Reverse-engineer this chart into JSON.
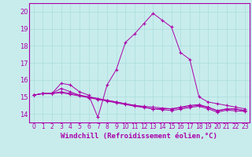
{
  "title": "",
  "xlabel": "Windchill (Refroidissement éolien,°C)",
  "background_color": "#c8ecec",
  "line_color": "#aa00aa",
  "grid_color": "#aadddd",
  "xlim": [
    -0.5,
    23.5
  ],
  "ylim": [
    13.5,
    20.5
  ],
  "xticks": [
    0,
    1,
    2,
    3,
    4,
    5,
    6,
    7,
    8,
    9,
    10,
    11,
    12,
    13,
    14,
    15,
    16,
    17,
    18,
    19,
    20,
    21,
    22,
    23
  ],
  "yticks": [
    14,
    15,
    16,
    17,
    18,
    19,
    20
  ],
  "series": [
    [
      15.1,
      15.2,
      15.2,
      15.8,
      15.7,
      15.3,
      15.1,
      13.8,
      15.7,
      16.6,
      18.2,
      18.7,
      19.3,
      19.9,
      19.5,
      19.1,
      17.6,
      17.2,
      15.0,
      14.7,
      14.6,
      14.5,
      14.4,
      14.3
    ],
    [
      15.1,
      15.2,
      15.2,
      15.5,
      15.3,
      15.1,
      15.0,
      14.9,
      14.8,
      14.7,
      14.6,
      14.5,
      14.4,
      14.3,
      14.3,
      14.3,
      14.4,
      14.5,
      14.55,
      14.4,
      14.2,
      14.3,
      14.3,
      14.2
    ],
    [
      15.1,
      15.2,
      15.2,
      15.3,
      15.2,
      15.1,
      15.0,
      14.9,
      14.8,
      14.7,
      14.6,
      14.5,
      14.45,
      14.4,
      14.35,
      14.3,
      14.35,
      14.45,
      14.5,
      14.38,
      14.18,
      14.28,
      14.28,
      14.18
    ],
    [
      15.1,
      15.2,
      15.2,
      15.25,
      15.15,
      15.05,
      14.95,
      14.85,
      14.75,
      14.65,
      14.55,
      14.45,
      14.38,
      14.3,
      14.25,
      14.2,
      14.28,
      14.38,
      14.45,
      14.3,
      14.1,
      14.22,
      14.18,
      14.15
    ]
  ],
  "xlabel_fontsize": 6.5,
  "tick_fontsize": 5.5
}
